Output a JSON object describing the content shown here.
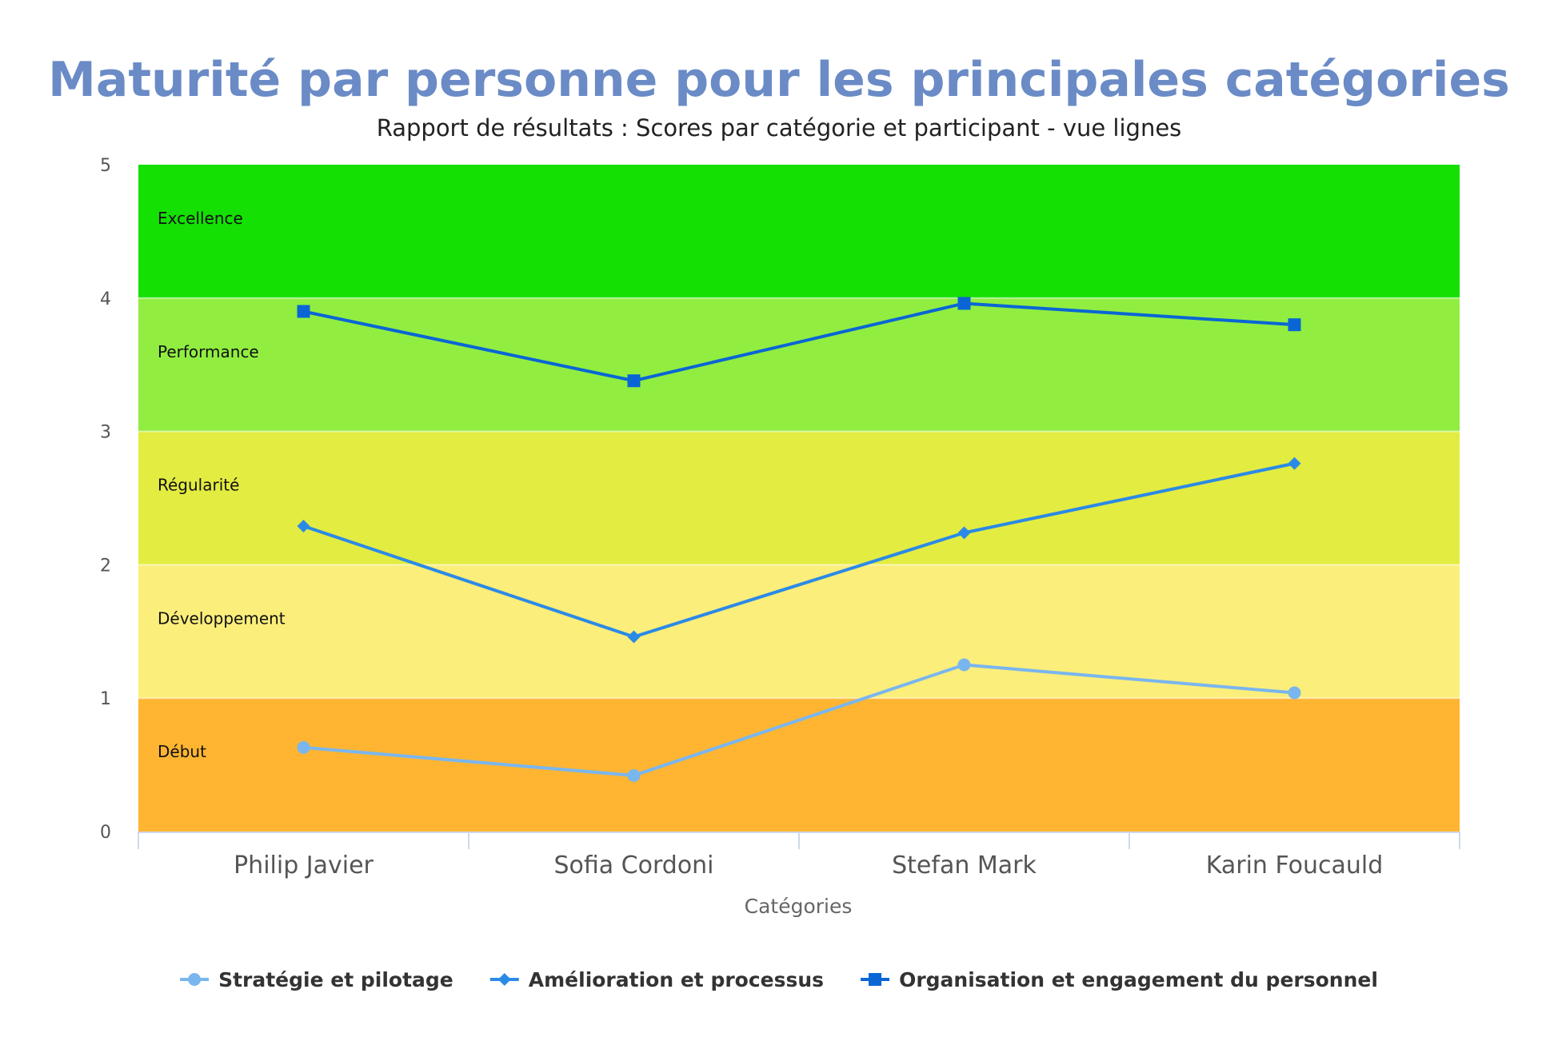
{
  "chart_data": {
    "type": "line",
    "title": "Maturité par personne pour les principales catégories",
    "subtitle": "Rapport de résultats : Scores par catégorie et participant - vue lignes",
    "xlabel": "Catégories",
    "ylabel": "",
    "ylim": [
      0,
      5
    ],
    "yticks": [
      0,
      1,
      2,
      3,
      4,
      5
    ],
    "categories": [
      "Philip Javier",
      "Sofia Cordoni",
      "Stefan Mark",
      "Karin Foucauld"
    ],
    "bands": [
      {
        "label": "Excellence",
        "from": 4,
        "to": 5,
        "color": "#14e004"
      },
      {
        "label": "Performance",
        "from": 3,
        "to": 4,
        "color": "#91ee41"
      },
      {
        "label": "Régularité",
        "from": 2,
        "to": 3,
        "color": "#e3ec41"
      },
      {
        "label": "Développement",
        "from": 1,
        "to": 2,
        "color": "#fcee7b"
      },
      {
        "label": "Début",
        "from": 0,
        "to": 1,
        "color": "#ffb532"
      }
    ],
    "series": [
      {
        "name": "Stratégie et pilotage",
        "values": [
          0.63,
          0.42,
          1.25,
          1.04
        ],
        "color": "#7ab6ee",
        "marker": "circle"
      },
      {
        "name": "Amélioration et processus",
        "values": [
          2.29,
          1.46,
          2.24,
          2.76
        ],
        "color": "#2b8ae6",
        "marker": "diamond"
      },
      {
        "name": "Organisation et engagement du personnel",
        "values": [
          3.9,
          3.38,
          3.96,
          3.8
        ],
        "color": "#0a66d4",
        "marker": "square"
      }
    ],
    "grid": false,
    "legend_position": "bottom",
    "title_color": "#6a8bc6"
  }
}
